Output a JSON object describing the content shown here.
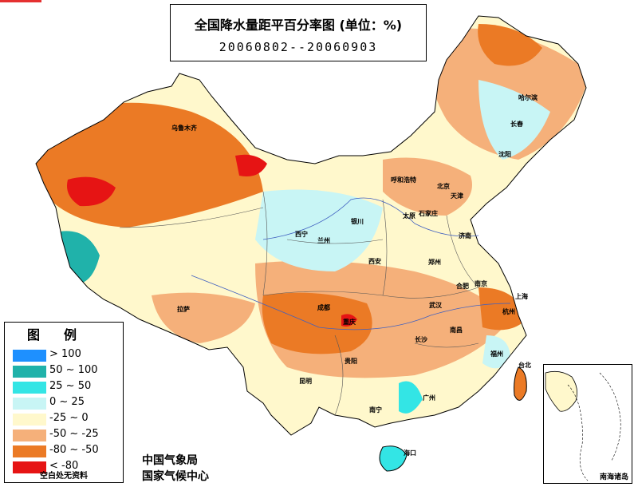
{
  "title": "全国降水量距平百分率图 (单位：%)",
  "date_range": "20060802--20060903",
  "legend": {
    "title": "图例",
    "items": [
      {
        "label": "> 100",
        "color": "#1e90ff"
      },
      {
        "label": "50 ~ 100",
        "color": "#20b2aa"
      },
      {
        "label": "25 ~ 50",
        "color": "#33e5e5"
      },
      {
        "label": "0 ~ 25",
        "color": "#c8f5f5"
      },
      {
        "label": "-25 ~ 0",
        "color": "#fff8cc"
      },
      {
        "label": "-50 ~ -25",
        "color": "#f5b07a"
      },
      {
        "label": "-80 ~ -50",
        "color": "#eb7a25"
      },
      {
        "label": "< -80",
        "color": "#e61414"
      }
    ],
    "note": "空白处无资料"
  },
  "agencies": [
    "中国气象局",
    "国家气候中心"
  ],
  "inset_label": "南海诸岛",
  "cities": [
    "乌鲁木齐",
    "哈尔滨",
    "长春",
    "沈阳",
    "呼和浩特",
    "北京",
    "天津",
    "石家庄",
    "太原",
    "济南",
    "银川",
    "西宁",
    "兰州",
    "西安",
    "郑州",
    "合肥",
    "南京",
    "上海",
    "拉萨",
    "成都",
    "重庆",
    "武汉",
    "杭州",
    "长沙",
    "南昌",
    "福州",
    "贵阳",
    "昆明",
    "南宁",
    "广州",
    "台北",
    "海口"
  ]
}
